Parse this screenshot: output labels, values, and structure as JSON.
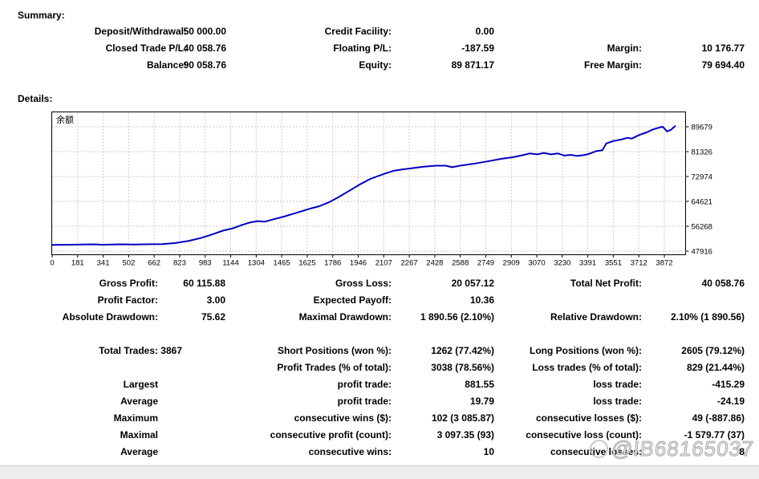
{
  "summary": {
    "heading": "Summary:",
    "rows": [
      {
        "l1": "Deposit/Withdrawal:",
        "v1": "50 000.00",
        "l2": "Credit Facility:",
        "v2": "0.00",
        "l3": "",
        "v3": ""
      },
      {
        "l1": "Closed Trade P/L:",
        "v1": "40 058.76",
        "l2": "Floating P/L:",
        "v2": "-187.59",
        "l3": "Margin:",
        "v3": "10 176.77"
      },
      {
        "l1": "Balance:",
        "v1": "90 058.76",
        "l2": "Equity:",
        "v2": "89 871.17",
        "l3": "Free Margin:",
        "v3": "79 694.40"
      }
    ]
  },
  "details": {
    "heading": "Details:",
    "rows": [
      {
        "l1": "Gross Profit:",
        "v1": "60 115.88",
        "l2": "Gross Loss:",
        "v2": "20 057.12",
        "l3": "Total Net Profit:",
        "v3": "40 058.76"
      },
      {
        "l1": "Profit Factor:",
        "v1": "3.00",
        "l2": "Expected Payoff:",
        "v2": "10.36",
        "l3": "",
        "v3": ""
      },
      {
        "l1": "Absolute Drawdown:",
        "v1": "75.62",
        "l2": "Maximal Drawdown:",
        "v2": "1 890.56 (2.10%)",
        "l3": "Relative Drawdown:",
        "v3": "2.10% (1 890.56)"
      }
    ]
  },
  "trades": {
    "rows": [
      {
        "l1": "Total Trades:",
        "v1": "3867",
        "l2": "Short Positions (won %):",
        "v2": "1262 (77.42%)",
        "l3": "Long Positions (won %):",
        "v3": "2605 (79.12%)"
      },
      {
        "l1": "",
        "v1": "",
        "l2": "Profit Trades (% of total):",
        "v2": "3038 (78.56%)",
        "l3": "Loss trades (% of total):",
        "v3": "829 (21.44%)"
      },
      {
        "l1": "Largest",
        "v1": "",
        "l2": "profit trade:",
        "v2": "881.55",
        "l3": "loss trade:",
        "v3": "-415.29"
      },
      {
        "l1": "Average",
        "v1": "",
        "l2": "profit trade:",
        "v2": "19.79",
        "l3": "loss trade:",
        "v3": "-24.19"
      },
      {
        "l1": "Maximum",
        "v1": "",
        "l2": "consecutive wins ($):",
        "v2": "102 (3 085.87)",
        "l3": "consecutive losses ($):",
        "v3": "49 (-887.86)"
      },
      {
        "l1": "Maximal",
        "v1": "",
        "l2": "consecutive profit (count):",
        "v2": "3 097.35 (93)",
        "l3": "consecutive loss (count):",
        "v3": "-1 579.77 (37)"
      },
      {
        "l1": "Average",
        "v1": "",
        "l2": "consecutive wins:",
        "v2": "10",
        "l3": "consecutive losses:",
        "v3": "8"
      }
    ]
  },
  "watermark": {
    "text": "@IB68165037"
  },
  "chart_data": {
    "type": "line",
    "title": "余额",
    "legend_position": "top-left-inside",
    "grid": true,
    "line_color": "#0000C0",
    "grid_color": "#c8c8c8",
    "xlim": [
      0,
      3940
    ],
    "ylim": [
      47916,
      89679
    ],
    "x_ticks": [
      0,
      181,
      341,
      502,
      662,
      823,
      983,
      1144,
      1304,
      1465,
      1625,
      1786,
      1946,
      2107,
      2267,
      2428,
      2588,
      2749,
      2909,
      3070,
      3230,
      3391,
      3551,
      3712,
      3872
    ],
    "y_ticks": [
      89679,
      81326,
      72974,
      64621,
      56268,
      47916
    ],
    "series": [
      {
        "name": "余额",
        "points": [
          [
            0,
            50000
          ],
          [
            150,
            50100
          ],
          [
            260,
            50200
          ],
          [
            320,
            50060
          ],
          [
            430,
            50200
          ],
          [
            520,
            50120
          ],
          [
            620,
            50230
          ],
          [
            700,
            50300
          ],
          [
            780,
            50650
          ],
          [
            860,
            51300
          ],
          [
            940,
            52300
          ],
          [
            1010,
            53500
          ],
          [
            1080,
            54800
          ],
          [
            1144,
            55600
          ],
          [
            1200,
            56700
          ],
          [
            1255,
            57600
          ],
          [
            1300,
            58000
          ],
          [
            1345,
            57800
          ],
          [
            1400,
            58600
          ],
          [
            1465,
            59500
          ],
          [
            1540,
            60700
          ],
          [
            1625,
            62100
          ],
          [
            1690,
            63000
          ],
          [
            1750,
            64300
          ],
          [
            1810,
            66000
          ],
          [
            1880,
            68200
          ],
          [
            1946,
            70300
          ],
          [
            2010,
            72100
          ],
          [
            2060,
            73100
          ],
          [
            2107,
            74000
          ],
          [
            2160,
            74900
          ],
          [
            2220,
            75400
          ],
          [
            2267,
            75700
          ],
          [
            2350,
            76300
          ],
          [
            2428,
            76600
          ],
          [
            2490,
            76600
          ],
          [
            2530,
            76100
          ],
          [
            2588,
            76700
          ],
          [
            2660,
            77200
          ],
          [
            2749,
            78000
          ],
          [
            2840,
            78900
          ],
          [
            2909,
            79400
          ],
          [
            2970,
            80100
          ],
          [
            3020,
            80700
          ],
          [
            3070,
            80400
          ],
          [
            3110,
            80900
          ],
          [
            3155,
            80400
          ],
          [
            3200,
            80700
          ],
          [
            3240,
            80000
          ],
          [
            3280,
            80250
          ],
          [
            3320,
            79900
          ],
          [
            3360,
            80150
          ],
          [
            3391,
            80500
          ],
          [
            3440,
            81500
          ],
          [
            3480,
            81800
          ],
          [
            3505,
            84100
          ],
          [
            3551,
            84900
          ],
          [
            3600,
            85400
          ],
          [
            3640,
            86000
          ],
          [
            3665,
            85700
          ],
          [
            3712,
            86900
          ],
          [
            3760,
            87800
          ],
          [
            3800,
            88800
          ],
          [
            3840,
            89400
          ],
          [
            3862,
            89700
          ],
          [
            3890,
            88100
          ],
          [
            3915,
            88700
          ],
          [
            3940,
            89900
          ]
        ]
      }
    ]
  }
}
